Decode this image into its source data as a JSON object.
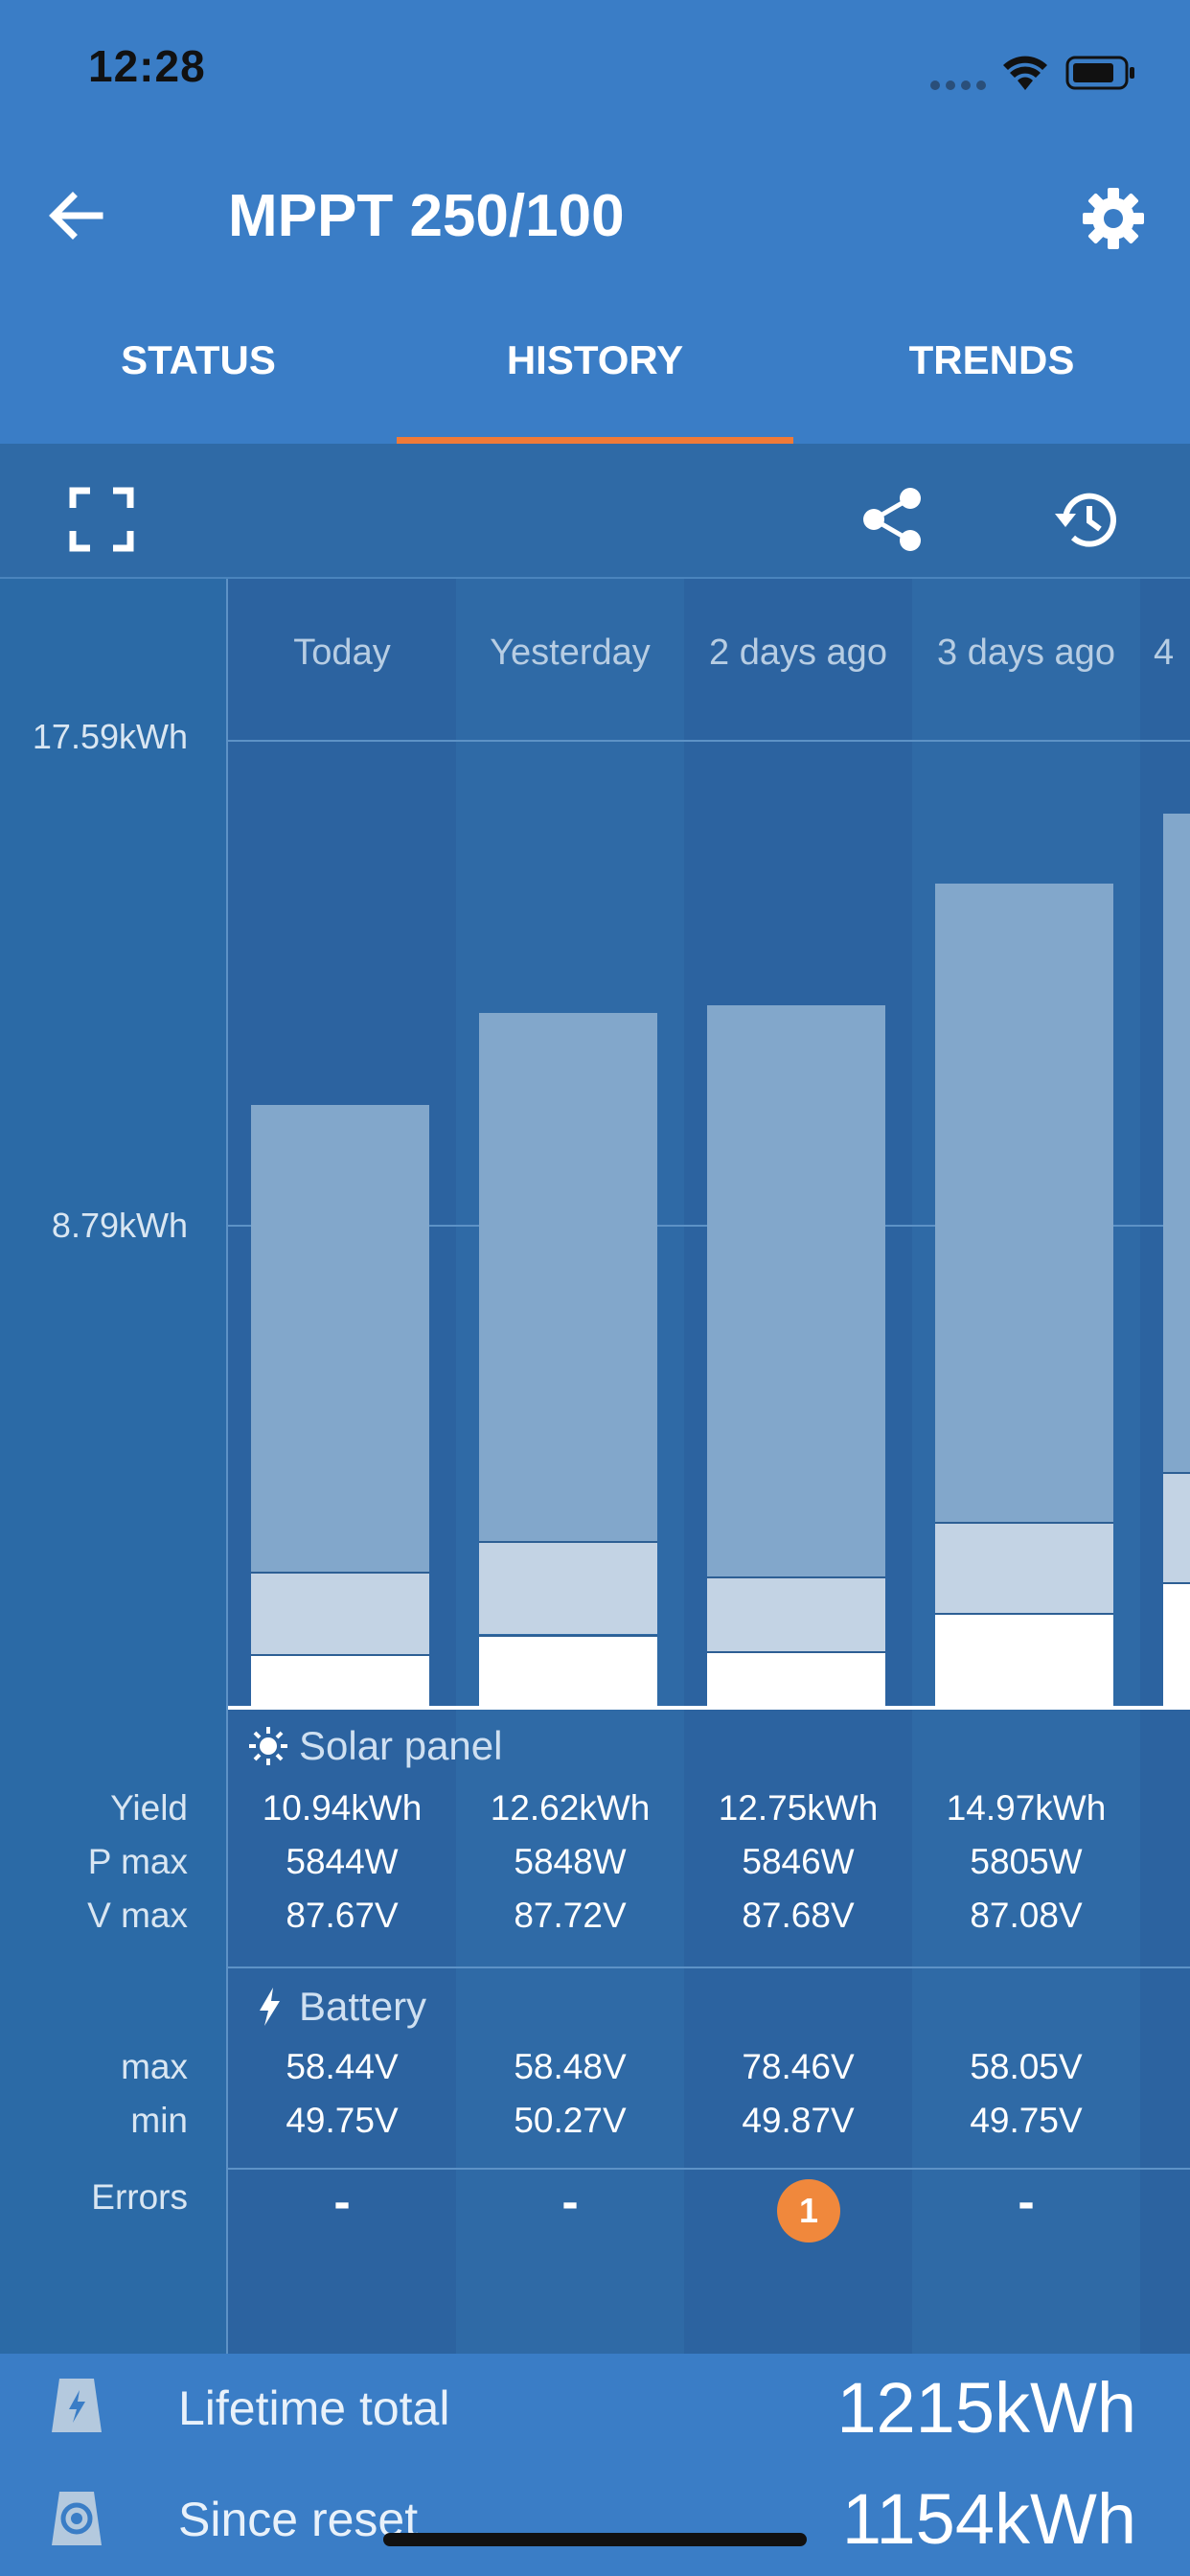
{
  "statusbar": {
    "time": "12:28"
  },
  "header": {
    "title": "MPPT 250/100"
  },
  "tabs": [
    {
      "label": "STATUS",
      "active": false
    },
    {
      "label": "HISTORY",
      "active": true
    },
    {
      "label": "TRENDS",
      "active": false
    }
  ],
  "chart": {
    "y_ticks": [
      "17.59kWh",
      "8.79kWh"
    ],
    "days": [
      "Today",
      "Yesterday",
      "2 days ago",
      "3 days ago",
      "4"
    ]
  },
  "solar_panel": {
    "heading": "Solar panel",
    "row_labels": {
      "yield": "Yield",
      "pmax": "P max",
      "vmax": "V max"
    },
    "yield": [
      "10.94kWh",
      "12.62kWh",
      "12.75kWh",
      "14.97kWh"
    ],
    "pmax": [
      "5844W",
      "5848W",
      "5846W",
      "5805W"
    ],
    "vmax": [
      "87.67V",
      "87.72V",
      "87.68V",
      "87.08V"
    ]
  },
  "battery": {
    "heading": "Battery",
    "row_labels": {
      "max": "max",
      "min": "min"
    },
    "max": [
      "58.44V",
      "58.48V",
      "78.46V",
      "58.05V"
    ],
    "min": [
      "49.75V",
      "50.27V",
      "49.87V",
      "49.75V"
    ]
  },
  "errors": {
    "label": "Errors",
    "values": [
      "-",
      "-",
      "1",
      "-"
    ]
  },
  "footer": {
    "lifetime_label": "Lifetime total",
    "lifetime_value": "1215kWh",
    "since_label": "Since reset",
    "since_value": "1154kWh"
  },
  "colors": {
    "header_bg": "#3a7dc6",
    "accent": "#f07a38",
    "bulk": "#82a7cb",
    "absorption": "#c3d3e4",
    "float": "#ffffff"
  },
  "icons": [
    "back-arrow-icon",
    "gear-icon",
    "fullscreen-icon",
    "share-icon",
    "history-icon",
    "sun-icon",
    "lightning-icon",
    "wifi-icon",
    "battery-icon",
    "signal-icon"
  ],
  "chart_data": {
    "type": "bar",
    "categories": [
      "Today",
      "Yesterday",
      "2 days ago",
      "3 days ago",
      "4"
    ],
    "series": [
      {
        "values": [
          0.95,
          1.3,
          1.0,
          1.7,
          2.25
        ]
      },
      {
        "values": [
          1.5,
          1.7,
          1.35,
          1.65,
          2.0
        ]
      },
      {
        "values": [
          8.49,
          9.62,
          10.4,
          11.62,
          12.0
        ]
      }
    ],
    "totals": [
      10.94,
      12.62,
      12.75,
      14.97,
      16.25
    ],
    "yticks": [
      "17.59kWh",
      "8.79kWh"
    ],
    "ylim": [
      0,
      17.59
    ],
    "grid": true
  }
}
